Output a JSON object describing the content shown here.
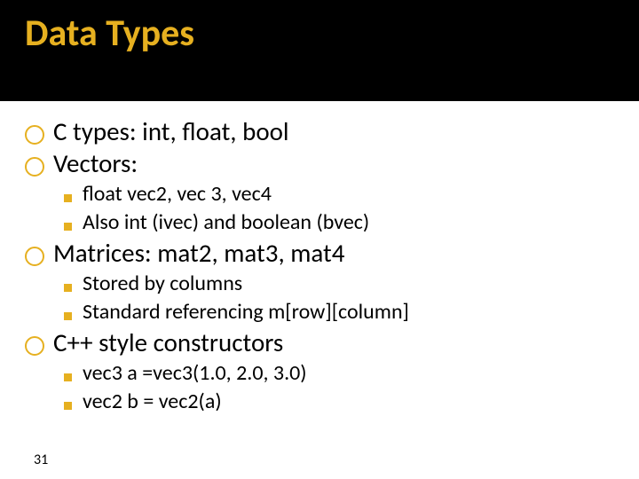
{
  "colors": {
    "titlebar_bg": "#000000",
    "title_color": "#e6b020",
    "text_color": "#000000",
    "lvl1_bullet_border": "#e6b020",
    "lvl2_square_color": "#e6b020",
    "slide_bg": "#ffffff"
  },
  "fonts": {
    "title_size": "42px",
    "lvl1_size": "29px",
    "lvl2_size": "24px",
    "pagenum_size": "16px"
  },
  "title": "Data Types",
  "items": {
    "i0": "C types: int, float, bool",
    "i1": "Vectors:",
    "i1a": "float vec2, vec 3, vec4",
    "i1b": "Also int (ivec) and boolean (bvec)",
    "i2": "Matrices: mat2, mat3, mat4",
    "i2a": "Stored by columns",
    "i2b": "Standard referencing m[row][column]",
    "i3": "C++ style constructors",
    "i3a": "vec3 a =vec3(1.0, 2.0, 3.0)",
    "i3b": "vec2 b = vec2(a)"
  },
  "pagenum": "31"
}
